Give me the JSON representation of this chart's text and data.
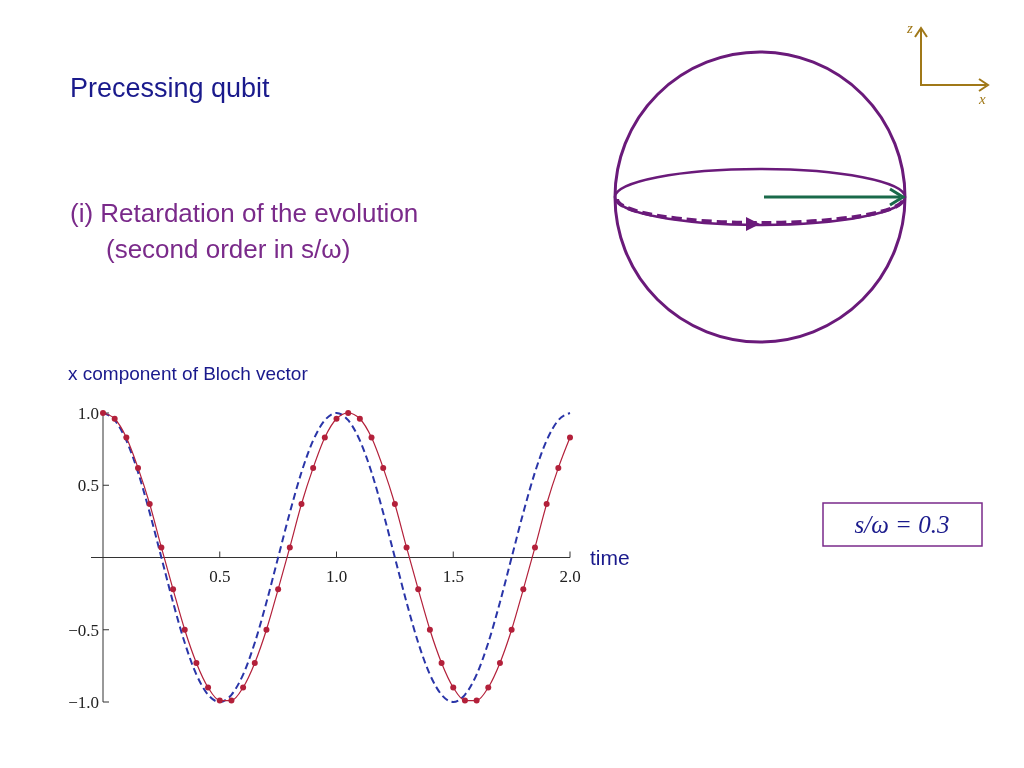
{
  "chart_data": {
    "type": "line",
    "title": "Precessing qubit",
    "subtitle": "(i) Retardation of the evolution\n(second order in s/ω)",
    "ylabel": "x component of Bloch vector",
    "xlabel": "time",
    "annotations": [
      "s/ω = 0.3",
      "z",
      "x"
    ],
    "x": [
      0,
      0.05,
      0.1,
      0.15,
      0.2,
      0.25,
      0.3,
      0.35,
      0.4,
      0.45,
      0.5,
      0.55,
      0.6,
      0.65,
      0.7,
      0.75,
      0.8,
      0.85,
      0.9,
      0.95,
      1,
      1.05,
      1.1,
      1.15,
      1.2,
      1.25,
      1.3,
      1.35,
      1.4,
      1.45,
      1.5,
      1.55,
      1.6,
      1.65,
      1.7,
      1.75,
      1.8,
      1.85,
      1.9,
      1.95,
      2
    ],
    "series": [
      {
        "color": "#2a35a8",
        "line_style": "dashed",
        "marker": "none",
        "values": [
          1,
          0.95,
          0.81,
          0.59,
          0.31,
          0,
          -0.31,
          -0.59,
          -0.81,
          -0.95,
          -1,
          -0.95,
          -0.81,
          -0.59,
          -0.31,
          0,
          0.31,
          0.59,
          0.81,
          0.95,
          1,
          0.95,
          0.81,
          0.59,
          0.31,
          0,
          -0.31,
          -0.59,
          -0.81,
          -0.95,
          -1,
          -0.95,
          -0.81,
          -0.59,
          -0.31,
          0,
          0.31,
          0.59,
          0.81,
          0.95,
          1
        ]
      },
      {
        "color": "#b3203a",
        "line_style": "solid",
        "marker": "circle",
        "values": [
          1,
          0.96,
          0.83,
          0.62,
          0.37,
          0.07,
          -0.22,
          -0.5,
          -0.73,
          -0.9,
          -0.99,
          -0.99,
          -0.9,
          -0.73,
          -0.5,
          -0.22,
          0.07,
          0.37,
          0.62,
          0.83,
          0.96,
          1,
          0.96,
          0.83,
          0.62,
          0.37,
          0.07,
          -0.22,
          -0.5,
          -0.73,
          -0.9,
          -0.99,
          -0.99,
          -0.9,
          -0.73,
          -0.5,
          -0.22,
          0.07,
          0.37,
          0.62,
          0.83
        ]
      }
    ],
    "xlim": [
      0,
      2
    ],
    "ylim": [
      -1,
      1
    ],
    "xticks": [
      0.5,
      {
        "value": 1,
        "label": "1.0"
      },
      1.5,
      {
        "value": 2,
        "label": "2.0"
      }
    ],
    "yticks": [
      {
        "value": -1,
        "label": "−1.0"
      },
      {
        "value": -0.5,
        "label": "−0.5"
      },
      0.5,
      {
        "value": 1,
        "label": "1.0"
      }
    ],
    "grid": false
  }
}
